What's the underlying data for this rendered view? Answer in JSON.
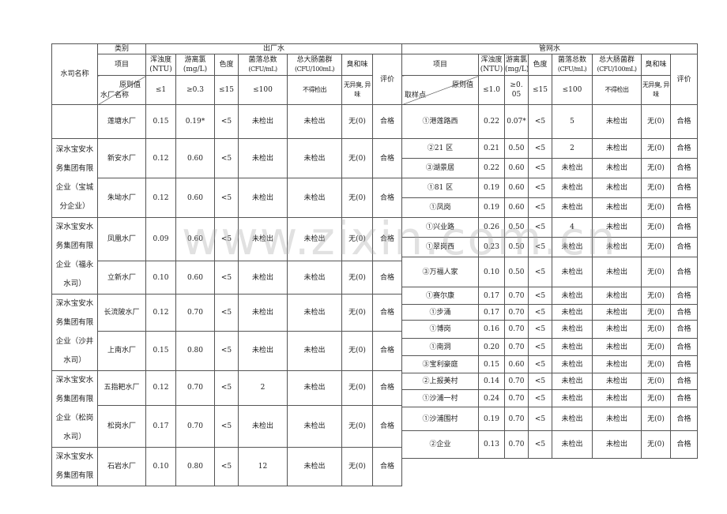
{
  "left": {
    "company_header": "水司名称",
    "category_label": "类别",
    "section_title": "出厂水",
    "item_label": "项目",
    "diag_top": "原则值",
    "diag_bottom": "水厂名称",
    "columns": [
      {
        "name": "浑浊度",
        "unit": "(NTU)",
        "limit": "≤1"
      },
      {
        "name": "游离氯",
        "unit": "(mg/L)",
        "limit": "≥0.3"
      },
      {
        "name": "色度",
        "unit": "",
        "limit": "≤15"
      },
      {
        "name": "菌落总数",
        "unit": "(CFU/mL)",
        "limit": "≤100"
      },
      {
        "name": "总大肠菌群",
        "unit": "(CFU/100mL)",
        "limit": "不得检出"
      },
      {
        "name": "臭和味",
        "unit": "",
        "limit": "无异臭, 异味"
      }
    ],
    "eval_label": "评价",
    "companies": [
      "",
      "深水宝安水务集团有限企业（宝城分企业）",
      "深水宝安水务集团有限企业（福永水司）",
      "深水宝安水务集团有限企业（沙井水司）",
      "深水宝安水务集团有限企业（松岗水司）",
      "深水宝安水务集团有限"
    ],
    "rows": [
      [
        "莲塘水厂",
        "0.15",
        "0.19*",
        "<5",
        "未检出",
        "未检出",
        "无(0)",
        "合格"
      ],
      [
        "新安水厂",
        "0.12",
        "0.60",
        "<5",
        "未检出",
        "未检出",
        "无(0)",
        "合格"
      ],
      [
        "朱坳水厂",
        "0.12",
        "0.60",
        "<5",
        "未检出",
        "未检出",
        "无(0)",
        "合格"
      ],
      [
        "凤凰水厂",
        "0.09",
        "0.60",
        "<5",
        "未检出",
        "未检出",
        "无(0)",
        "合格"
      ],
      [
        "立新水厂",
        "0.10",
        "0.60",
        "<5",
        "未检出",
        "未检出",
        "无(0)",
        "合格"
      ],
      [
        "长流陂水厂",
        "0.12",
        "0.70",
        "<5",
        "未检出",
        "未检出",
        "无(0)",
        "合格"
      ],
      [
        "上南水厂",
        "0.15",
        "0.80",
        "<5",
        "未检出",
        "未检出",
        "无(0)",
        "合格"
      ],
      [
        "五指耙水厂",
        "0.12",
        "0.70",
        "<5",
        "2",
        "未检出",
        "无(0)",
        "合格"
      ],
      [
        "松岗水厂",
        "0.17",
        "0.70",
        "<5",
        "未检出",
        "未检出",
        "无(0)",
        "合格"
      ],
      [
        "石岩水厂",
        "0.10",
        "0.80",
        "<5",
        "12",
        "未检出",
        "无(0)",
        "合格"
      ]
    ]
  },
  "right": {
    "section_title": "管网水",
    "item_label": "项目",
    "diag_top": "原则值",
    "diag_bottom": "取样点",
    "columns": [
      {
        "name": "浑浊度",
        "unit": "(NTU)",
        "limit": "≤1.0"
      },
      {
        "name": "游离氯",
        "unit": "(mg/L)",
        "limit": "≥0. 05"
      },
      {
        "name": "色度",
        "unit": "",
        "limit": "≤15"
      },
      {
        "name": "菌落总数",
        "unit": "(CFU/mL)",
        "limit": "≤100"
      },
      {
        "name": "总大肠菌群",
        "unit": "(CFU/100mL)",
        "limit": "不得检出"
      },
      {
        "name": "臭和味",
        "unit": "",
        "limit": "无异臭, 异味"
      }
    ],
    "eval_label": "评价",
    "rows": [
      [
        "①港莲路西",
        "0.22",
        "0.07*",
        "<5",
        "5",
        "未检出",
        "无(0)",
        "合格"
      ],
      [
        "②21 区",
        "0.21",
        "0.50",
        "<5",
        "2",
        "未检出",
        "无(0)",
        "合格"
      ],
      [
        "③湖景居",
        "0.22",
        "0.60",
        "<5",
        "未检出",
        "未检出",
        "无(0)",
        "合格"
      ],
      [
        "①81 区",
        "0.19",
        "0.60",
        "<5",
        "未检出",
        "未检出",
        "无(0)",
        "合格"
      ],
      [
        "①凤岗",
        "0.19",
        "0.60",
        "<5",
        "未检出",
        "未检出",
        "无(0)",
        "合格"
      ],
      [
        "①兴业路",
        "0.26",
        "0.50",
        "<5",
        "4",
        "未检出",
        "无(0)",
        "合格"
      ],
      [
        "①翠岗西",
        "0.23",
        "0.50",
        "<5",
        "未检出",
        "未检出",
        "无(0)",
        "合格"
      ],
      [
        "③万福人家",
        "0.10",
        "0.50",
        "<5",
        "未检出",
        "未检出",
        "无(0)",
        "合格"
      ],
      [
        "①赛尔康",
        "0.17",
        "0.70",
        "<5",
        "未检出",
        "未检出",
        "无(0)",
        "合格"
      ],
      [
        "①步涌",
        "0.17",
        "0.70",
        "<5",
        "未检出",
        "未检出",
        "无(0)",
        "合格"
      ],
      [
        "①博岗",
        "0.16",
        "0.70",
        "<5",
        "未检出",
        "未检出",
        "无(0)",
        "合格"
      ],
      [
        "①南洞",
        "0.20",
        "0.70",
        "<5",
        "未检出",
        "未检出",
        "无(0)",
        "合格"
      ],
      [
        "③宝利豪庭",
        "0.15",
        "0.60",
        "<5",
        "未检出",
        "未检出",
        "无(0)",
        "合格"
      ],
      [
        "②上报美村",
        "0.14",
        "0.70",
        "<5",
        "未检出",
        "未检出",
        "无(0)",
        "合格"
      ],
      [
        "①沙浦一村",
        "0.24",
        "0.70",
        "<5",
        "未检出",
        "未检出",
        "无(0)",
        "合格"
      ],
      [
        "①沙浦围村",
        "0.19",
        "0.70",
        "<5",
        "未检出",
        "未检出",
        "无(0)",
        "合格"
      ],
      [
        "②企业",
        "0.13",
        "0.70",
        "<5",
        "未检出",
        "未检出",
        "无(0)",
        "合格"
      ]
    ]
  },
  "watermark": "www.zixin.com.cn"
}
